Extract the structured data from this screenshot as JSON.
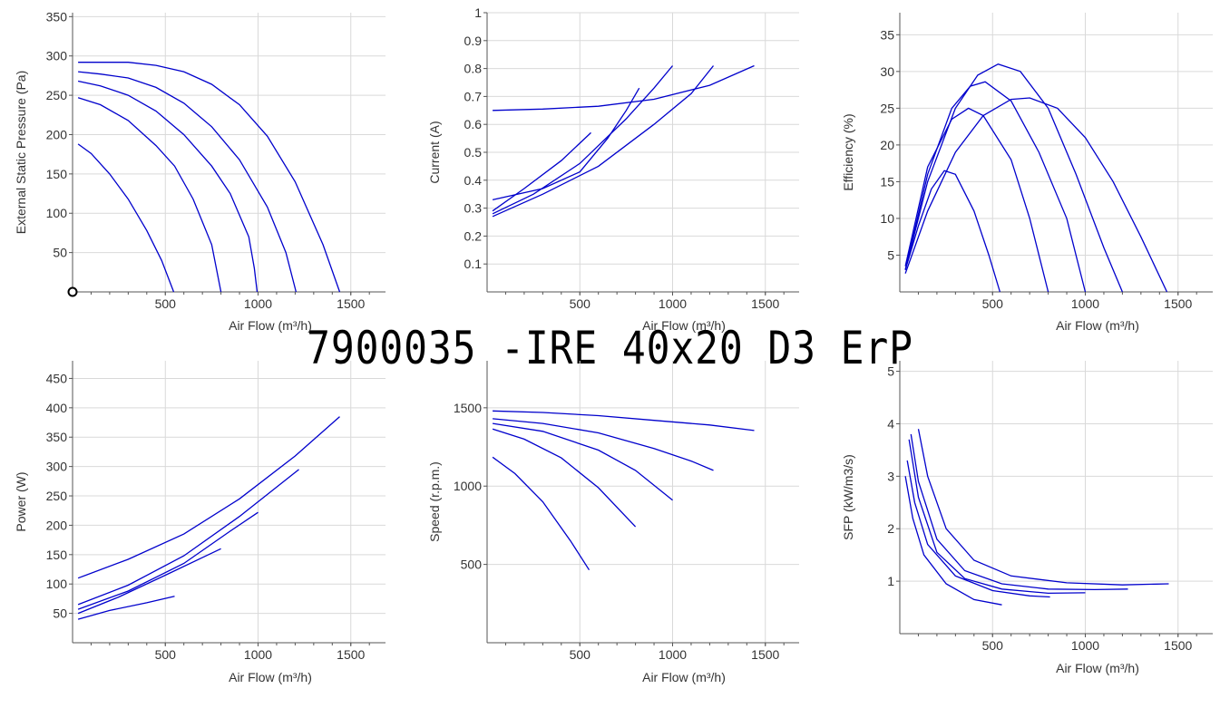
{
  "title": "7900035 -IRE 40x20 D3 ErP",
  "colors": {
    "series": "#0000cc",
    "grid": "#d9d9d9",
    "axis": "#555555",
    "text": "#333333"
  },
  "chart_data": [
    {
      "type": "line",
      "xlabel": "Air Flow (m³/h)",
      "ylabel": "External Static Pressure (Pa)",
      "xlim": [
        0,
        1700
      ],
      "ylim": [
        0,
        355
      ],
      "x_ticks": [
        500,
        1000,
        1500
      ],
      "y_ticks": [
        50,
        100,
        150,
        200,
        250,
        300,
        350
      ],
      "grid": true,
      "marker": {
        "x": 0,
        "y": 0,
        "shape": "open-circle"
      },
      "series": [
        {
          "points": [
            [
              30,
              292
            ],
            [
              150,
              292
            ],
            [
              300,
              292
            ],
            [
              450,
              288
            ],
            [
              600,
              280
            ],
            [
              750,
              264
            ],
            [
              900,
              238
            ],
            [
              1050,
              198
            ],
            [
              1200,
              140
            ],
            [
              1350,
              60
            ],
            [
              1440,
              0
            ]
          ]
        },
        {
          "points": [
            [
              30,
              280
            ],
            [
              150,
              277
            ],
            [
              300,
              272
            ],
            [
              450,
              260
            ],
            [
              600,
              240
            ],
            [
              750,
              210
            ],
            [
              900,
              168
            ],
            [
              1050,
              108
            ],
            [
              1150,
              50
            ],
            [
              1205,
              0
            ]
          ]
        },
        {
          "points": [
            [
              30,
              268
            ],
            [
              150,
              262
            ],
            [
              300,
              250
            ],
            [
              450,
              230
            ],
            [
              600,
              200
            ],
            [
              750,
              160
            ],
            [
              850,
              125
            ],
            [
              950,
              70
            ],
            [
              980,
              30
            ],
            [
              995,
              0
            ]
          ]
        },
        {
          "points": [
            [
              30,
              247
            ],
            [
              150,
              238
            ],
            [
              300,
              218
            ],
            [
              450,
              186
            ],
            [
              550,
              160
            ],
            [
              650,
              118
            ],
            [
              750,
              60
            ],
            [
              800,
              0
            ]
          ]
        },
        {
          "points": [
            [
              30,
              188
            ],
            [
              100,
              176
            ],
            [
              200,
              150
            ],
            [
              300,
              118
            ],
            [
              400,
              78
            ],
            [
              480,
              40
            ],
            [
              545,
              0
            ]
          ]
        }
      ]
    },
    {
      "type": "line",
      "xlabel": "Air Flow (m³/h)",
      "ylabel": "Current (A)",
      "xlim": [
        0,
        1700
      ],
      "ylim": [
        0,
        1.0
      ],
      "x_ticks": [
        500,
        1000,
        1500
      ],
      "y_ticks": [
        0.1,
        0.2,
        0.3,
        0.4,
        0.5,
        0.6,
        0.7,
        0.8,
        0.9,
        1
      ],
      "grid": true,
      "series": [
        {
          "points": [
            [
              30,
              0.65
            ],
            [
              300,
              0.655
            ],
            [
              600,
              0.665
            ],
            [
              900,
              0.69
            ],
            [
              1200,
              0.74
            ],
            [
              1440,
              0.81
            ]
          ]
        },
        {
          "points": [
            [
              30,
              0.27
            ],
            [
              300,
              0.35
            ],
            [
              600,
              0.45
            ],
            [
              900,
              0.6
            ],
            [
              1100,
              0.71
            ],
            [
              1220,
              0.81
            ]
          ]
        },
        {
          "points": [
            [
              30,
              0.28
            ],
            [
              250,
              0.35
            ],
            [
              500,
              0.46
            ],
            [
              750,
              0.62
            ],
            [
              900,
              0.73
            ],
            [
              1000,
              0.81
            ]
          ]
        },
        {
          "points": [
            [
              30,
              0.33
            ],
            [
              300,
              0.37
            ],
            [
              500,
              0.43
            ],
            [
              650,
              0.55
            ],
            [
              750,
              0.65
            ],
            [
              820,
              0.73
            ]
          ]
        },
        {
          "points": [
            [
              30,
              0.29
            ],
            [
              200,
              0.37
            ],
            [
              400,
              0.47
            ],
            [
              560,
              0.57
            ]
          ]
        }
      ]
    },
    {
      "type": "line",
      "xlabel": "Air Flow (m³/h)",
      "ylabel": "Efficiency (%)",
      "xlim": [
        0,
        1700
      ],
      "ylim": [
        0,
        38
      ],
      "x_ticks": [
        500,
        1000,
        1500
      ],
      "y_ticks": [
        5,
        10,
        15,
        20,
        25,
        30,
        35
      ],
      "grid": true,
      "series": [
        {
          "points": [
            [
              30,
              2.5
            ],
            [
              150,
              11
            ],
            [
              300,
              19
            ],
            [
              450,
              24
            ],
            [
              600,
              26.2
            ],
            [
              700,
              26.4
            ],
            [
              850,
              25
            ],
            [
              1000,
              21
            ],
            [
              1150,
              15
            ],
            [
              1300,
              7.5
            ],
            [
              1440,
              0
            ]
          ]
        },
        {
          "points": [
            [
              30,
              3
            ],
            [
              150,
              15
            ],
            [
              300,
              25
            ],
            [
              420,
              29.5
            ],
            [
              530,
              31
            ],
            [
              650,
              30
            ],
            [
              800,
              25
            ],
            [
              950,
              16
            ],
            [
              1100,
              6
            ],
            [
              1200,
              0
            ]
          ]
        },
        {
          "points": [
            [
              30,
              3
            ],
            [
              150,
              16
            ],
            [
              280,
              25
            ],
            [
              380,
              28
            ],
            [
              460,
              28.6
            ],
            [
              600,
              26
            ],
            [
              750,
              19
            ],
            [
              900,
              10
            ],
            [
              960,
              4
            ],
            [
              1000,
              0
            ]
          ]
        },
        {
          "points": [
            [
              30,
              3.5
            ],
            [
              150,
              17
            ],
            [
              280,
              23.5
            ],
            [
              370,
              25
            ],
            [
              450,
              24
            ],
            [
              600,
              18
            ],
            [
              700,
              10
            ],
            [
              800,
              0
            ]
          ]
        },
        {
          "points": [
            [
              30,
              3
            ],
            [
              100,
              9
            ],
            [
              170,
              14
            ],
            [
              240,
              16.5
            ],
            [
              300,
              16
            ],
            [
              400,
              11
            ],
            [
              480,
              5
            ],
            [
              540,
              0
            ]
          ]
        }
      ]
    },
    {
      "type": "line",
      "xlabel": "Air Flow (m³/h)",
      "ylabel": "Power (W)",
      "xlim": [
        0,
        1700
      ],
      "ylim": [
        0,
        480
      ],
      "x_ticks": [
        500,
        1000,
        1500
      ],
      "y_ticks": [
        50,
        100,
        150,
        200,
        250,
        300,
        350,
        400,
        450
      ],
      "grid": true,
      "series": [
        {
          "points": [
            [
              30,
              110
            ],
            [
              300,
              142
            ],
            [
              600,
              185
            ],
            [
              900,
              245
            ],
            [
              1200,
              318
            ],
            [
              1440,
              385
            ]
          ]
        },
        {
          "points": [
            [
              30,
              65
            ],
            [
              300,
              98
            ],
            [
              600,
              148
            ],
            [
              900,
              215
            ],
            [
              1220,
              295
            ]
          ]
        },
        {
          "points": [
            [
              30,
              57
            ],
            [
              300,
              88
            ],
            [
              600,
              135
            ],
            [
              850,
              190
            ],
            [
              1000,
              222
            ]
          ]
        },
        {
          "points": [
            [
              30,
              50
            ],
            [
              250,
              78
            ],
            [
              500,
              115
            ],
            [
              700,
              145
            ],
            [
              800,
              160
            ]
          ]
        },
        {
          "points": [
            [
              30,
              40
            ],
            [
              200,
              55
            ],
            [
              400,
              68
            ],
            [
              550,
              79
            ]
          ]
        }
      ]
    },
    {
      "type": "line",
      "xlabel": "Air Flow (m³/h)",
      "ylabel": "Speed (r.p.m.)",
      "xlim": [
        0,
        1700
      ],
      "ylim": [
        0,
        1800
      ],
      "x_ticks": [
        500,
        1000,
        1500
      ],
      "y_ticks": [
        500,
        1000,
        1500
      ],
      "grid": true,
      "series": [
        {
          "points": [
            [
              30,
              1480
            ],
            [
              300,
              1470
            ],
            [
              600,
              1450
            ],
            [
              900,
              1420
            ],
            [
              1200,
              1390
            ],
            [
              1440,
              1355
            ]
          ]
        },
        {
          "points": [
            [
              30,
              1430
            ],
            [
              300,
              1400
            ],
            [
              600,
              1340
            ],
            [
              900,
              1240
            ],
            [
              1100,
              1160
            ],
            [
              1220,
              1100
            ]
          ]
        },
        {
          "points": [
            [
              30,
              1400
            ],
            [
              300,
              1350
            ],
            [
              600,
              1230
            ],
            [
              800,
              1100
            ],
            [
              1000,
              910
            ]
          ]
        },
        {
          "points": [
            [
              30,
              1365
            ],
            [
              200,
              1300
            ],
            [
              400,
              1180
            ],
            [
              600,
              990
            ],
            [
              800,
              740
            ]
          ]
        },
        {
          "points": [
            [
              30,
              1185
            ],
            [
              150,
              1080
            ],
            [
              300,
              900
            ],
            [
              450,
              650
            ],
            [
              550,
              465
            ]
          ]
        }
      ]
    },
    {
      "type": "line",
      "xlabel": "Air Flow (m³/h)",
      "ylabel": "SFP (kW/m3/s)",
      "xlim": [
        0,
        1700
      ],
      "ylim": [
        0,
        5.2
      ],
      "x_ticks": [
        500,
        1000,
        1500
      ],
      "y_ticks": [
        1,
        2,
        3,
        4,
        5
      ],
      "grid": true,
      "series": [
        {
          "points": [
            [
              100,
              3.9
            ],
            [
              150,
              3.0
            ],
            [
              250,
              2.0
            ],
            [
              400,
              1.4
            ],
            [
              600,
              1.1
            ],
            [
              900,
              0.97
            ],
            [
              1200,
              0.93
            ],
            [
              1450,
              0.95
            ]
          ]
        },
        {
          "points": [
            [
              60,
              3.8
            ],
            [
              100,
              2.9
            ],
            [
              200,
              1.8
            ],
            [
              350,
              1.2
            ],
            [
              550,
              0.95
            ],
            [
              800,
              0.85
            ],
            [
              1050,
              0.84
            ],
            [
              1230,
              0.85
            ]
          ]
        },
        {
          "points": [
            [
              50,
              3.7
            ],
            [
              100,
              2.6
            ],
            [
              200,
              1.55
            ],
            [
              350,
              1.05
            ],
            [
              550,
              0.85
            ],
            [
              800,
              0.77
            ],
            [
              1000,
              0.78
            ]
          ]
        },
        {
          "points": [
            [
              40,
              3.3
            ],
            [
              80,
              2.5
            ],
            [
              150,
              1.7
            ],
            [
              300,
              1.1
            ],
            [
              500,
              0.82
            ],
            [
              700,
              0.72
            ],
            [
              810,
              0.7
            ]
          ]
        },
        {
          "points": [
            [
              30,
              3.0
            ],
            [
              70,
              2.2
            ],
            [
              130,
              1.5
            ],
            [
              250,
              0.95
            ],
            [
              400,
              0.65
            ],
            [
              550,
              0.55
            ]
          ]
        }
      ]
    }
  ]
}
